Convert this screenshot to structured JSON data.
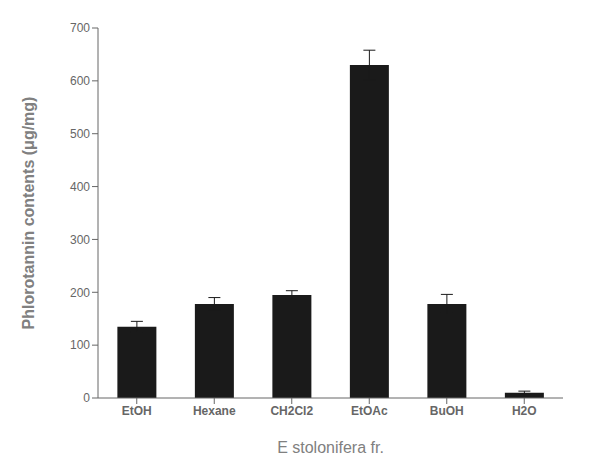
{
  "chart_data": {
    "type": "bar",
    "categories": [
      "EtOH",
      "Hexane",
      "CH2Cl2",
      "EtOAc",
      "BuOH",
      "H2O"
    ],
    "values": [
      135,
      178,
      195,
      630,
      178,
      10
    ],
    "errors": [
      10,
      12,
      8,
      28,
      18,
      3
    ],
    "color": "#1a1a1a",
    "ylim": [
      0,
      700
    ],
    "yticks": [
      0,
      100,
      200,
      300,
      400,
      500,
      600,
      700
    ],
    "ylabel": "Phlorotannin contents (μg/mg)",
    "xlabel": "E stolonifera fr.",
    "grid": false
  }
}
